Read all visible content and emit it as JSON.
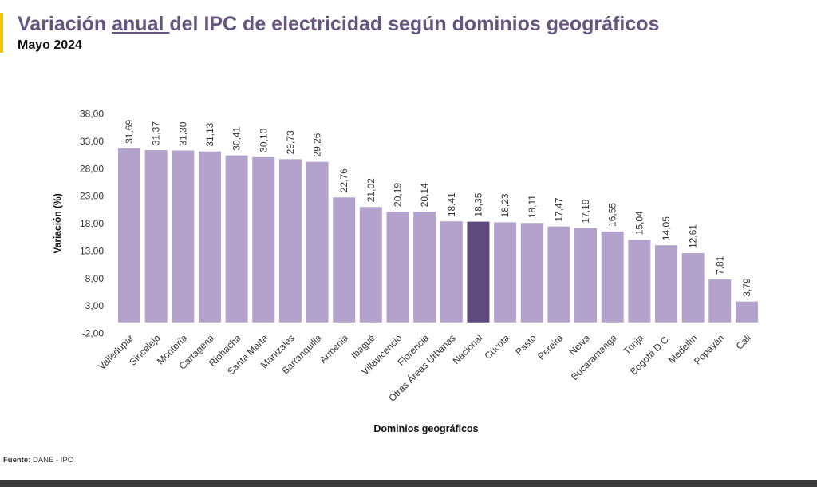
{
  "header": {
    "title_pre": "Variación ",
    "title_underlined": "anual ",
    "title_post": "del IPC de electricidad según dominios geográficos",
    "subtitle": "Mayo 2024"
  },
  "source": {
    "label": "Fuente:",
    "text": " DANE - IPC"
  },
  "colors": {
    "bar": "#b3a2cb",
    "highlight": "#5f4a7d",
    "title": "#66567f",
    "accent": "#f2c200"
  },
  "chart_data": {
    "type": "bar",
    "title": "Variación anual del IPC de electricidad según dominios geográficos",
    "xlabel": "Dominios geográficos",
    "ylabel": "Variación (%)",
    "ylim": [
      -2,
      38
    ],
    "yticks": [
      -2,
      3,
      8,
      13,
      18,
      23,
      28,
      33,
      38
    ],
    "ytick_labels": [
      "-2,00",
      "3,00",
      "8,00",
      "13,00",
      "18,00",
      "23,00",
      "28,00",
      "33,00",
      "38,00"
    ],
    "categories": [
      "Valledupar",
      "Sincelejo",
      "Montería",
      "Cartagena",
      "Riohacha",
      "Santa Marta",
      "Manizales",
      "Barranquilla",
      "Armenia",
      "Ibagué",
      "Villavicencio",
      "Florencia",
      "Otras Áreas Urbanas",
      "Nacional",
      "Cúcuta",
      "Pasto",
      "Pereira",
      "Neiva",
      "Bucaramanga",
      "Tunja",
      "Bogotá D.C.",
      "Medellín",
      "Popayán",
      "Cali"
    ],
    "values": [
      31.69,
      31.37,
      31.3,
      31.13,
      30.41,
      30.1,
      29.73,
      29.26,
      22.76,
      21.02,
      20.19,
      20.14,
      18.41,
      18.35,
      18.23,
      18.11,
      17.47,
      17.19,
      16.55,
      15.04,
      14.05,
      12.61,
      7.81,
      3.79
    ],
    "value_labels": [
      "31,69",
      "31,37",
      "31,30",
      "31,13",
      "30,41",
      "30,10",
      "29,73",
      "29,26",
      "22,76",
      "21,02",
      "20,19",
      "20,14",
      "18,41",
      "18,35",
      "18,23",
      "18,11",
      "17,47",
      "17,19",
      "16,55",
      "15,04",
      "14,05",
      "12,61",
      "7,81",
      "3,79"
    ],
    "highlight": "Nacional",
    "grid": false,
    "legend": "none"
  }
}
